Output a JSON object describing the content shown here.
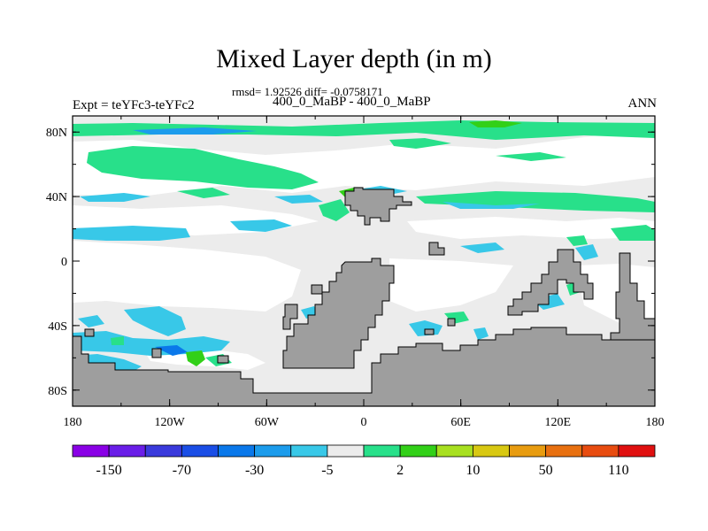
{
  "title": "Mixed Layer depth (in m)",
  "stats": "rmsd= 1.92526 diff= -0.0758171",
  "experiment_subtitle": "400_0_MaBP - 400_0_MaBP",
  "experiment_label": "Expt = teYFc3-teYFc2",
  "season": "ANN",
  "lat_ticks": [
    "80N",
    "40N",
    "0",
    "40S",
    "80S"
  ],
  "lon_ticks": [
    "180",
    "120W",
    "60W",
    "0",
    "60E",
    "120E",
    "180"
  ],
  "colorbar": {
    "colors": [
      "#8a00e6",
      "#6a1ee8",
      "#3a3adc",
      "#1a4ee6",
      "#0a78ea",
      "#1c9cec",
      "#38c8e8",
      "#ececec",
      "#28e08a",
      "#32d018",
      "#a8e020",
      "#d8c812",
      "#e89c10",
      "#e87010",
      "#e84c10",
      "#e01010"
    ],
    "labels": [
      "-150",
      "-70",
      "-30",
      "-5",
      "2",
      "10",
      "50",
      "110"
    ]
  },
  "colors": {
    "land": "#9e9e9e",
    "background_field": "#ececec",
    "ocean_zero": "#ffffff"
  }
}
